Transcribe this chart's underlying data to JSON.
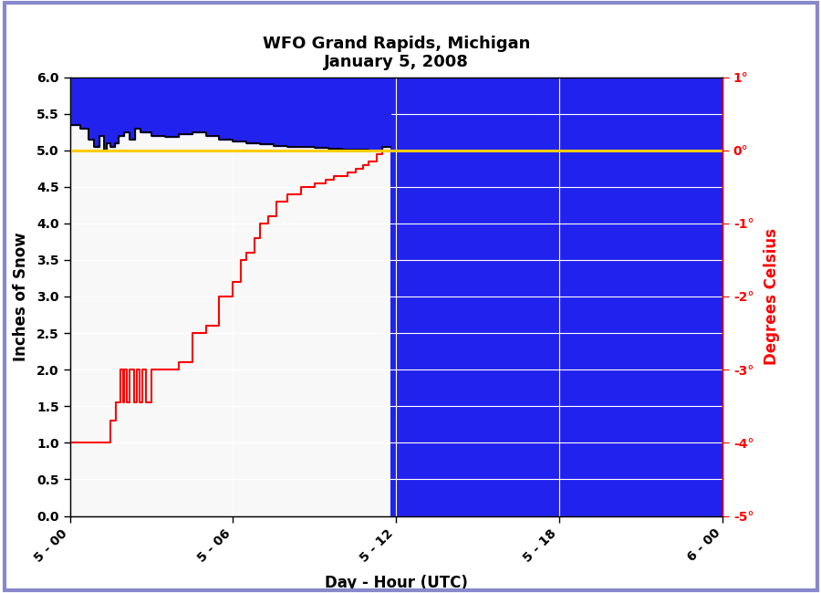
{
  "title_line1": "WFO Grand Rapids, Michigan",
  "title_line2": "January 5, 2008",
  "xlabel": "Day - Hour (UTC)",
  "ylabel_left": "Inches of Snow",
  "ylabel_right": "Degrees Celsius",
  "xtick_labels": [
    "5 - 00",
    "5 - 06",
    "5 - 12",
    "5 - 18",
    "6 - 00"
  ],
  "xtick_positions": [
    0,
    6,
    12,
    18,
    24
  ],
  "xlim": [
    0,
    24
  ],
  "ylim_left": [
    0.0,
    6.0
  ],
  "ylim_right": [
    -5,
    1
  ],
  "yticks_left": [
    0.0,
    0.5,
    1.0,
    1.5,
    2.0,
    2.5,
    3.0,
    3.5,
    4.0,
    4.5,
    5.0,
    5.5,
    6.0
  ],
  "yticks_right": [
    -5,
    -4,
    -3,
    -2,
    -1,
    0,
    1
  ],
  "ytick_right_labels": [
    "-5°",
    "-4°",
    "-3°",
    "-2°",
    "-1°",
    "0°",
    "1°"
  ],
  "blue_color": "#2222ee",
  "white_bg_color": "#f8f8f8",
  "yellow_line_color": "#ffcc00",
  "yellow_line_y": 5.0,
  "black_line_color": "#000000",
  "red_line_color": "#ff0000",
  "blue_bg_start_x": 11.8,
  "fig_bg_color": "#ffffff",
  "border_color": "#8888cc",
  "snow_depth_x": [
    0,
    0.4,
    0.4,
    0.7,
    0.7,
    0.9,
    0.9,
    1.1,
    1.1,
    1.25,
    1.25,
    1.35,
    1.35,
    1.5,
    1.5,
    1.65,
    1.65,
    1.8,
    1.8,
    2.0,
    2.0,
    2.2,
    2.2,
    2.4,
    2.4,
    2.6,
    2.6,
    3.0,
    3.0,
    3.5,
    3.5,
    4.0,
    4.0,
    4.5,
    4.5,
    5.0,
    5.0,
    5.5,
    5.5,
    6.0,
    6.0,
    6.5,
    6.5,
    7.0,
    7.0,
    7.5,
    7.5,
    8.0,
    8.0,
    8.5,
    8.5,
    9.0,
    9.0,
    9.5,
    9.5,
    10.0,
    10.0,
    10.5,
    10.5,
    11.0,
    11.0,
    11.5,
    11.5,
    11.8
  ],
  "snow_depth_y": [
    5.35,
    5.35,
    5.3,
    5.3,
    5.15,
    5.15,
    5.05,
    5.05,
    5.2,
    5.2,
    5.0,
    5.0,
    5.1,
    5.1,
    5.05,
    5.05,
    5.1,
    5.1,
    5.2,
    5.2,
    5.25,
    5.25,
    5.15,
    5.15,
    5.3,
    5.3,
    5.25,
    5.25,
    5.2,
    5.2,
    5.18,
    5.18,
    5.22,
    5.22,
    5.25,
    5.25,
    5.2,
    5.2,
    5.15,
    5.15,
    5.12,
    5.12,
    5.1,
    5.1,
    5.08,
    5.08,
    5.06,
    5.06,
    5.05,
    5.05,
    5.04,
    5.04,
    5.03,
    5.03,
    5.02,
    5.02,
    5.01,
    5.01,
    5.01,
    5.01,
    5.0,
    5.0,
    5.05,
    5.05
  ],
  "temp_x": [
    0,
    1.5,
    1.5,
    1.7,
    1.7,
    1.85,
    1.85,
    1.95,
    1.95,
    2.0,
    2.0,
    2.1,
    2.1,
    2.2,
    2.2,
    2.35,
    2.35,
    2.45,
    2.45,
    2.55,
    2.55,
    2.65,
    2.65,
    2.8,
    2.8,
    3.0,
    3.0,
    4.0,
    4.0,
    4.5,
    4.5,
    5.0,
    5.0,
    5.5,
    5.5,
    6.0,
    6.0,
    6.3,
    6.3,
    6.5,
    6.5,
    6.8,
    6.8,
    7.0,
    7.0,
    7.3,
    7.3,
    7.6,
    7.6,
    8.0,
    8.0,
    8.5,
    8.5,
    9.0,
    9.0,
    9.4,
    9.4,
    9.7,
    9.7,
    10.2,
    10.2,
    10.5,
    10.5,
    10.8,
    10.8,
    11.0,
    11.0,
    11.3,
    11.3,
    11.5,
    11.5,
    11.8
  ],
  "temp_y": [
    1.0,
    1.0,
    1.3,
    1.3,
    1.55,
    1.55,
    2.0,
    2.0,
    1.55,
    1.55,
    2.0,
    2.0,
    1.55,
    1.55,
    2.0,
    2.0,
    1.55,
    1.55,
    2.0,
    2.0,
    1.55,
    1.55,
    2.0,
    2.0,
    1.55,
    1.55,
    2.0,
    2.0,
    2.1,
    2.1,
    2.5,
    2.5,
    2.6,
    2.6,
    3.0,
    3.0,
    3.2,
    3.2,
    3.5,
    3.5,
    3.6,
    3.6,
    3.8,
    3.8,
    4.0,
    4.0,
    4.1,
    4.1,
    4.3,
    4.3,
    4.4,
    4.4,
    4.5,
    4.5,
    4.55,
    4.55,
    4.6,
    4.6,
    4.65,
    4.65,
    4.7,
    4.7,
    4.75,
    4.75,
    4.8,
    4.8,
    4.85,
    4.85,
    4.95,
    4.95,
    5.0,
    5.0
  ]
}
